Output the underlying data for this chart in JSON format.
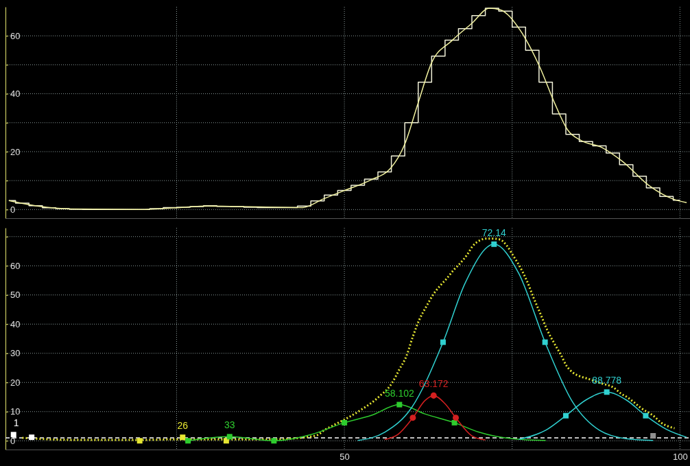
{
  "chart_data": [
    {
      "type": "line",
      "xlim": [
        -0.5,
        101.5
      ],
      "ylim": [
        -3,
        70
      ],
      "xticks": [
        {
          "value": 25,
          "label": null
        },
        {
          "value": 50,
          "label": null
        },
        {
          "value": 75,
          "label": null
        },
        {
          "value": 100,
          "label": null
        }
      ],
      "yticks": [
        0,
        {
          "value": 10,
          "label": null
        },
        20,
        {
          "value": 30,
          "label": null
        },
        40,
        {
          "value": 50,
          "label": null
        },
        60
      ],
      "grid": true,
      "tick_labels": "y",
      "series": [
        {
          "type": "step",
          "color": "#f0f0d8",
          "x": [
            0,
            2,
            4,
            6,
            8,
            10,
            12,
            14,
            16,
            18,
            20,
            22,
            24,
            26,
            28,
            30,
            32,
            34,
            36,
            38,
            40,
            42,
            44,
            46,
            48,
            50,
            52,
            54,
            56,
            58,
            60,
            62,
            64,
            66,
            68,
            70,
            72,
            74,
            76,
            78,
            80,
            82,
            84,
            86,
            88,
            90,
            92,
            94,
            96,
            98,
            100
          ],
          "values": [
            3.1,
            2.2,
            1.3,
            0.6,
            0.3,
            0.1,
            0,
            0,
            0,
            0,
            0,
            0.3,
            0.7,
            0.8,
            1,
            1.3,
            1.1,
            1,
            0.8,
            0.7,
            0.7,
            0.7,
            1.2,
            3,
            5,
            6.6,
            8.4,
            10.5,
            13,
            18.5,
            30,
            44,
            53,
            58.5,
            62.5,
            67,
            69.5,
            68.5,
            63,
            55,
            44,
            33,
            26,
            23.5,
            22,
            19.5,
            15.5,
            11.5,
            7.5,
            4.5,
            3.2
          ]
        },
        {
          "color": "#f2f2a0",
          "x": [
            0,
            4.3,
            9.3,
            19.5,
            25.5,
            29.6,
            34.7,
            43.8,
            46.8,
            49.8,
            53.9,
            56.9,
            59,
            61,
            63,
            66,
            69,
            71.6,
            73.2,
            76.2,
            79.2,
            81.3,
            83.3,
            85.3,
            88.4,
            91.4,
            95.4,
            99,
            101
          ],
          "values": [
            3.1,
            1.2,
            0.2,
            0,
            0.7,
            1.2,
            1,
            0.7,
            3.6,
            6.4,
            10.2,
            14.3,
            22.6,
            36.9,
            50.7,
            58.3,
            64.3,
            69.5,
            69,
            61.9,
            48.8,
            36.9,
            27.4,
            23.8,
            21.4,
            16.7,
            8.3,
            3.6,
            2.4
          ]
        }
      ]
    },
    {
      "type": "line",
      "xlim": [
        -0.5,
        101.5
      ],
      "ylim": [
        -3,
        73
      ],
      "xticks": [
        {
          "value": 25,
          "label": null
        },
        50,
        {
          "value": 75,
          "label": null
        },
        100
      ],
      "yticks": [
        0,
        10,
        20,
        30,
        40,
        50,
        60,
        {
          "value": 70,
          "label": null
        }
      ],
      "grid": true,
      "ref_lines": [
        {
          "axis": "y",
          "value": 1,
          "color": "#ffffff",
          "line_style": "dashed"
        }
      ],
      "annotations": [
        {
          "text": "1",
          "x": 0.7,
          "y": 2.1
        },
        {
          "text": "26",
          "x": 25.9,
          "y": 1.2
        },
        {
          "text": "33",
          "x": 32.9,
          "y": 1.4
        },
        {
          "text": "58.102",
          "x": 58.2,
          "y": 12.4
        },
        {
          "text": "63.172",
          "x": 63.3,
          "y": 15.5
        },
        {
          "text": "72.14",
          "x": 72.3,
          "y": 67.4
        },
        {
          "text": "88.778",
          "x": 89.1,
          "y": 16.7
        }
      ],
      "series": [
        {
          "color": "#e6e632",
          "line_style": "dotted",
          "x": [
            2,
            6,
            10,
            15,
            20,
            25,
            30,
            35,
            40,
            44,
            45.9,
            47.1,
            48.1,
            52.2,
            55.1,
            57.1,
            58.2,
            59.2,
            60.2,
            61.2,
            62.2,
            63.2,
            64.2,
            65.2,
            66.3,
            67.3,
            68.3,
            69.1,
            70.1,
            71.1,
            72.1,
            73.2,
            74.2,
            75.2,
            76.2,
            77.2,
            78.2,
            79.2,
            80.2,
            81.3,
            82.3,
            83.1,
            84.1,
            85.1,
            86.1,
            88.1,
            90.2,
            91.2,
            92.1,
            93.1,
            94.1,
            96.2,
            97.2,
            98.2,
            99.2
          ],
          "values": [
            1,
            0.5,
            0.3,
            0.3,
            0.3,
            0.5,
            0.5,
            0.5,
            0.5,
            1.2,
            1.9,
            3.8,
            5,
            10.2,
            15,
            19.8,
            24.5,
            28.8,
            35.7,
            41.7,
            46,
            50,
            53,
            55.5,
            58.6,
            61,
            63.8,
            66.7,
            68.6,
            69.3,
            69.3,
            69,
            66.9,
            63.3,
            59.5,
            54.8,
            49,
            43.6,
            38.1,
            33.3,
            29.3,
            25.7,
            23.3,
            22.1,
            21.4,
            19.8,
            18.1,
            16.2,
            15,
            13.3,
            11.4,
            8.3,
            6.2,
            5,
            4.3
          ]
        },
        {
          "color": "#2ecc2e",
          "x": [
            26.7,
            32.9,
            39.5,
            45,
            50,
            54,
            58.2,
            62,
            66.4,
            70,
            75,
            80
          ],
          "values": [
            0,
            1.4,
            0,
            2.1,
            6.2,
            8.7,
            12.4,
            9.2,
            6.2,
            3,
            0.7,
            0.1
          ]
        },
        {
          "color": "#d42020",
          "x": [
            56,
            58,
            60.2,
            62,
            63.3,
            65,
            66.6,
            69,
            71
          ],
          "values": [
            0.4,
            2.2,
            7.9,
            13.8,
            15.5,
            12.7,
            7.9,
            1.7,
            0.3
          ]
        },
        {
          "color": "#30d0d0",
          "x": [
            52,
            56,
            60,
            64.7,
            68,
            72.3,
            76,
            79.9,
            84,
            88,
            92,
            96
          ],
          "values": [
            0.1,
            2.9,
            11.3,
            33.8,
            54.1,
            67.4,
            57.3,
            33.8,
            13.3,
            3.6,
            0.7,
            0.1
          ]
        },
        {
          "color": "#30d0d0",
          "x": [
            76,
            80,
            83,
            86,
            89.1,
            92,
            94.9,
            98,
            101
          ],
          "values": [
            0.5,
            3.6,
            8.6,
            14,
            16.7,
            14,
            8.6,
            3.9,
            1.2
          ]
        },
        {
          "type": "scatter",
          "marker": "square",
          "color": "#ffffff",
          "x": [
            0.7,
            3.4
          ],
          "values": [
            2.1,
            1.2
          ]
        },
        {
          "type": "scatter",
          "marker": "square",
          "color": "#e6e632",
          "x": [
            19.5,
            25.9,
            32.4
          ],
          "values": [
            0,
            1.2,
            0
          ]
        },
        {
          "type": "scatter",
          "marker": "square",
          "color": "#2ecc2e",
          "x": [
            26.7,
            32.9,
            39.5,
            50,
            58.2,
            66.4
          ],
          "values": [
            0,
            1.4,
            0,
            6.2,
            12.4,
            6.2
          ]
        },
        {
          "type": "scatter",
          "marker": "circle",
          "color": "#d42020",
          "x": [
            60.2,
            63.3,
            66.6
          ],
          "values": [
            7.9,
            15.5,
            7.9
          ]
        },
        {
          "type": "scatter",
          "marker": "square",
          "color": "#30d0d0",
          "x": [
            64.7,
            72.3,
            79.9,
            83,
            89.1,
            94.9
          ],
          "values": [
            33.8,
            67.4,
            33.8,
            8.6,
            16.7,
            8.6
          ]
        },
        {
          "type": "scatter",
          "marker": "square",
          "color": "#909090",
          "x": [
            96
          ],
          "values": [
            1.7
          ]
        }
      ]
    }
  ]
}
